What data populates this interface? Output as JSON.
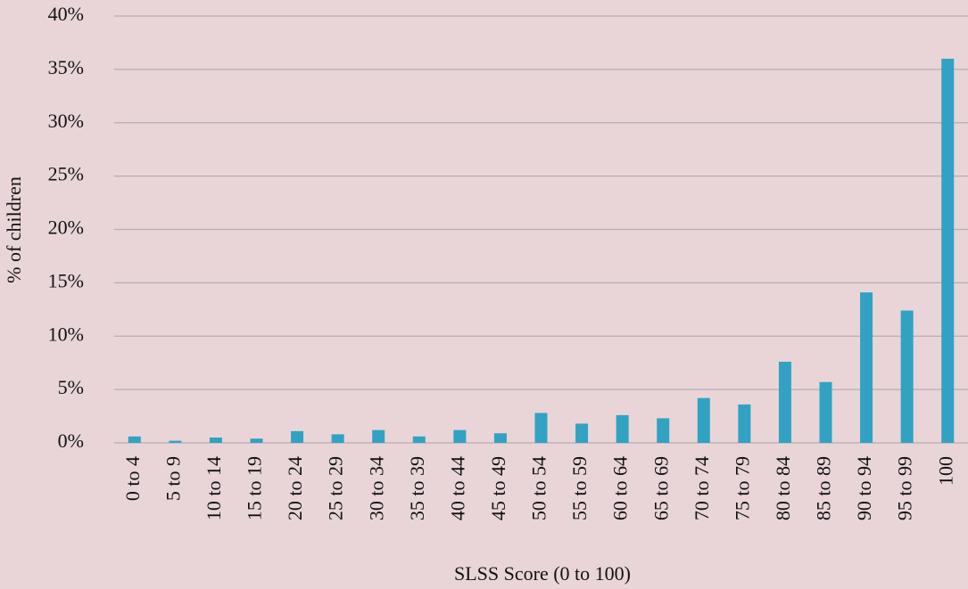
{
  "chart_data": {
    "type": "bar",
    "xlabel": "SLSS Score (0 to 100)",
    "ylabel": "% of children",
    "categories": [
      "0 to 4",
      "5 to 9",
      "10 to 14",
      "15 to 19",
      "20 to 24",
      "25 to 29",
      "30 to 34",
      "35 to 39",
      "40 to 44",
      "45 to 49",
      "50 to 54",
      "55 to 59",
      "60 to 64",
      "65 to 69",
      "70 to 74",
      "75 to 79",
      "80 to 84",
      "85 to 89",
      "90 to 94",
      "95 to 99",
      "100"
    ],
    "values": [
      0.6,
      0.2,
      0.5,
      0.4,
      1.1,
      0.8,
      1.2,
      0.6,
      1.2,
      0.9,
      2.8,
      1.8,
      2.6,
      2.3,
      4.2,
      3.6,
      7.6,
      5.7,
      14.1,
      12.4,
      36
    ],
    "color": "#31a2c1",
    "ylim": [
      0,
      40
    ],
    "yticks": [
      {
        "value": 0,
        "label": "0%"
      },
      {
        "value": 5,
        "label": "5%"
      },
      {
        "value": 10,
        "label": "10%"
      },
      {
        "value": 15,
        "label": "15%"
      },
      {
        "value": 20,
        "label": "20%"
      },
      {
        "value": 25,
        "label": "25%"
      },
      {
        "value": 30,
        "label": "30%"
      },
      {
        "value": 35,
        "label": "35%"
      },
      {
        "value": 40,
        "label": "40%"
      }
    ],
    "grid": true
  }
}
